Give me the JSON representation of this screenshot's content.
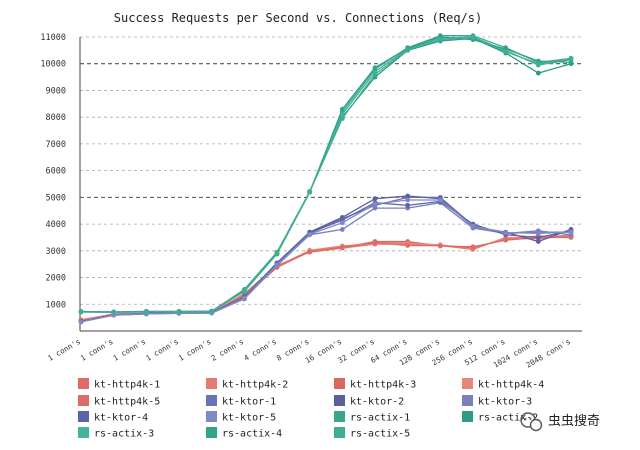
{
  "chart_data": {
    "type": "line",
    "title": "Success Requests per Second vs. Connections (Req/s)",
    "xlabel": "",
    "ylabel": "",
    "ylim": [
      0,
      11000
    ],
    "yticks": [
      1000,
      2000,
      3000,
      4000,
      5000,
      6000,
      7000,
      8000,
      9000,
      10000,
      11000
    ],
    "major_gridlines": [
      5000,
      10000
    ],
    "grid": true,
    "legend_position": "bottom",
    "categories": [
      "1 conn's",
      "1 conn's",
      "1 conn's",
      "1 conn's",
      "1 conn's",
      "2 conn's",
      "4 conn's",
      "8 conn's",
      "16 conn's",
      "32 conn's",
      "64 conn's",
      "128 conn's",
      "256 conn's",
      "512 conn's",
      "1024 conn's",
      "2048 conn's"
    ],
    "series": [
      {
        "name": "kt-http4k-1",
        "color": "#e06a66",
        "values": [
          400,
          620,
          660,
          680,
          700,
          1350,
          2400,
          3000,
          3150,
          3300,
          3300,
          3200,
          3100,
          3450,
          3550,
          3550
        ]
      },
      {
        "name": "kt-http4k-2",
        "color": "#e57a72",
        "values": [
          420,
          630,
          650,
          660,
          680,
          1400,
          2450,
          2950,
          3100,
          3250,
          3250,
          3200,
          3050,
          3500,
          3450,
          3600
        ]
      },
      {
        "name": "kt-http4k-3",
        "color": "#d9685f",
        "values": [
          380,
          600,
          640,
          670,
          690,
          1300,
          2380,
          2980,
          3120,
          3350,
          3350,
          3180,
          3150,
          3400,
          3500,
          3500
        ]
      },
      {
        "name": "kt-http4k-4",
        "color": "#e8867c",
        "values": [
          410,
          640,
          670,
          690,
          710,
          1380,
          2420,
          3020,
          3180,
          3280,
          3280,
          3220,
          3080,
          3480,
          3520,
          3580
        ]
      },
      {
        "name": "kt-http4k-5",
        "color": "#dc6d65",
        "values": [
          390,
          610,
          655,
          675,
          695,
          1330,
          2410,
          2960,
          3140,
          3300,
          3200,
          3190,
          3120,
          3420,
          3480,
          3530
        ]
      },
      {
        "name": "kt-ktor-1",
        "color": "#6a72b8",
        "values": [
          350,
          600,
          650,
          670,
          680,
          1250,
          2500,
          3650,
          4200,
          4700,
          5000,
          5000,
          3950,
          3650,
          3700,
          3700
        ]
      },
      {
        "name": "kt-ktor-2",
        "color": "#5a5fa0",
        "values": [
          360,
          610,
          660,
          680,
          690,
          1280,
          2550,
          3700,
          4250,
          4950,
          5050,
          4950,
          3900,
          3700,
          3350,
          3800
        ]
      },
      {
        "name": "kt-ktor-3",
        "color": "#7a7fc0",
        "values": [
          340,
          590,
          640,
          660,
          670,
          1200,
          2450,
          3600,
          3800,
          4600,
          4600,
          4800,
          3850,
          3650,
          3750,
          3600
        ]
      },
      {
        "name": "kt-ktor-4",
        "color": "#5c63a8",
        "values": [
          355,
          605,
          655,
          675,
          685,
          1270,
          2520,
          3680,
          4150,
          4800,
          4700,
          4850,
          4000,
          3600,
          3500,
          3750
        ]
      },
      {
        "name": "kt-ktor-5",
        "color": "#8088c8",
        "values": [
          345,
          595,
          645,
          665,
          675,
          1230,
          2480,
          3620,
          4050,
          4750,
          4900,
          4900,
          3920,
          3680,
          3650,
          3700
        ]
      },
      {
        "name": "rs-actix-1",
        "color": "#3aa690",
        "values": [
          720,
          700,
          720,
          720,
          730,
          1500,
          2900,
          5200,
          8200,
          9800,
          10600,
          11050,
          11050,
          10600,
          10050,
          10200
        ]
      },
      {
        "name": "rs-actix-2",
        "color": "#2f9a86",
        "values": [
          730,
          710,
          730,
          730,
          740,
          1550,
          2950,
          5220,
          8000,
          9500,
          10500,
          10850,
          10950,
          10400,
          9650,
          10000
        ]
      },
      {
        "name": "rs-actix-3",
        "color": "#45b39a",
        "values": [
          715,
          705,
          725,
          725,
          735,
          1520,
          2920,
          5210,
          8100,
          9700,
          10550,
          10950,
          11000,
          10500,
          9950,
          10150
        ]
      },
      {
        "name": "rs-actix-4",
        "color": "#2fa58a",
        "values": [
          725,
          715,
          735,
          735,
          745,
          1480,
          2880,
          5190,
          8300,
          9850,
          10580,
          11000,
          10900,
          10550,
          10100,
          10050
        ]
      },
      {
        "name": "rs-actix-5",
        "color": "#3fae95",
        "values": [
          710,
          700,
          720,
          722,
          728,
          1510,
          2910,
          5200,
          7950,
          9600,
          10520,
          10900,
          11000,
          10450,
          10000,
          10180
        ]
      }
    ]
  },
  "watermark": {
    "text": "虫虫搜奇",
    "icon": "wechat-icon"
  }
}
